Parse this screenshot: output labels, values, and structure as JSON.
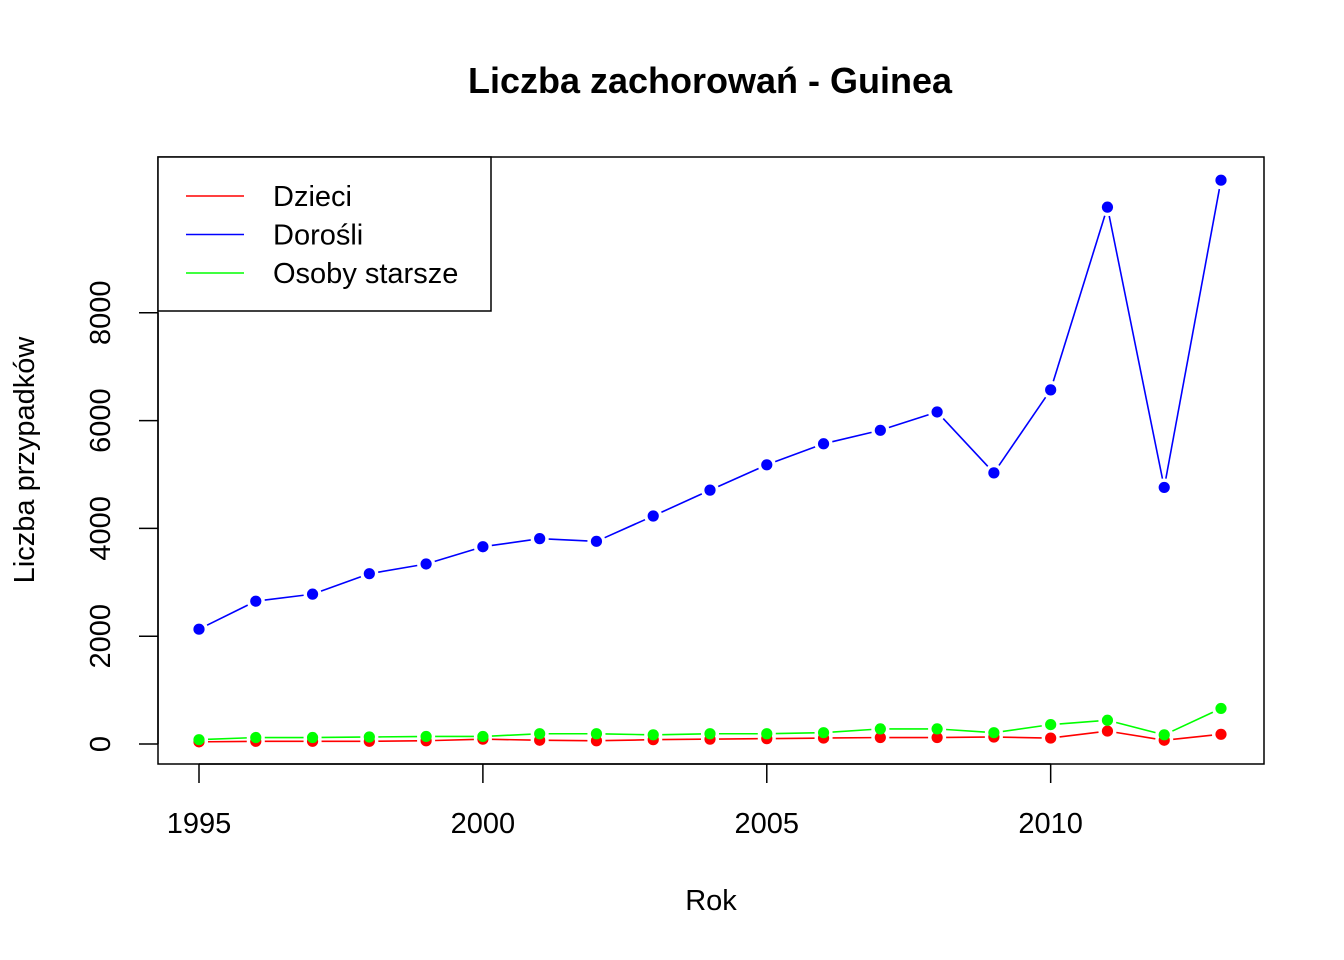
{
  "chart_data": {
    "type": "line",
    "title": "Liczba zachorowań -  Guinea",
    "xlabel": "Rok",
    "ylabel": "Liczba przypadków",
    "xlim": [
      1995,
      2013
    ],
    "ylim": [
      0,
      10000
    ],
    "x_ticks": [
      1995,
      2000,
      2005,
      2010
    ],
    "y_ticks": [
      0,
      2000,
      4000,
      6000,
      8000
    ],
    "grid": false,
    "legend_position": "top-left",
    "x": [
      1995,
      1996,
      1997,
      1998,
      1999,
      2000,
      2001,
      2002,
      2003,
      2004,
      2005,
      2006,
      2007,
      2008,
      2009,
      2010,
      2011,
      2012,
      2013
    ],
    "series": [
      {
        "name": "Dzieci",
        "color": "#ff0000",
        "values": [
          40,
          50,
          50,
          50,
          60,
          90,
          70,
          60,
          80,
          90,
          100,
          110,
          120,
          120,
          130,
          110,
          240,
          70,
          180
        ]
      },
      {
        "name": "Dorośli",
        "color": "#0000ff",
        "values": [
          2130,
          2650,
          2780,
          3160,
          3340,
          3660,
          3810,
          3760,
          4230,
          4710,
          5180,
          5570,
          5820,
          6160,
          5030,
          6570,
          9960,
          4760,
          10460
        ]
      },
      {
        "name": "Osoby starsze",
        "color": "#00ff00",
        "values": [
          80,
          120,
          120,
          130,
          140,
          140,
          190,
          190,
          170,
          190,
          190,
          210,
          280,
          280,
          210,
          360,
          440,
          170,
          660
        ]
      }
    ]
  }
}
